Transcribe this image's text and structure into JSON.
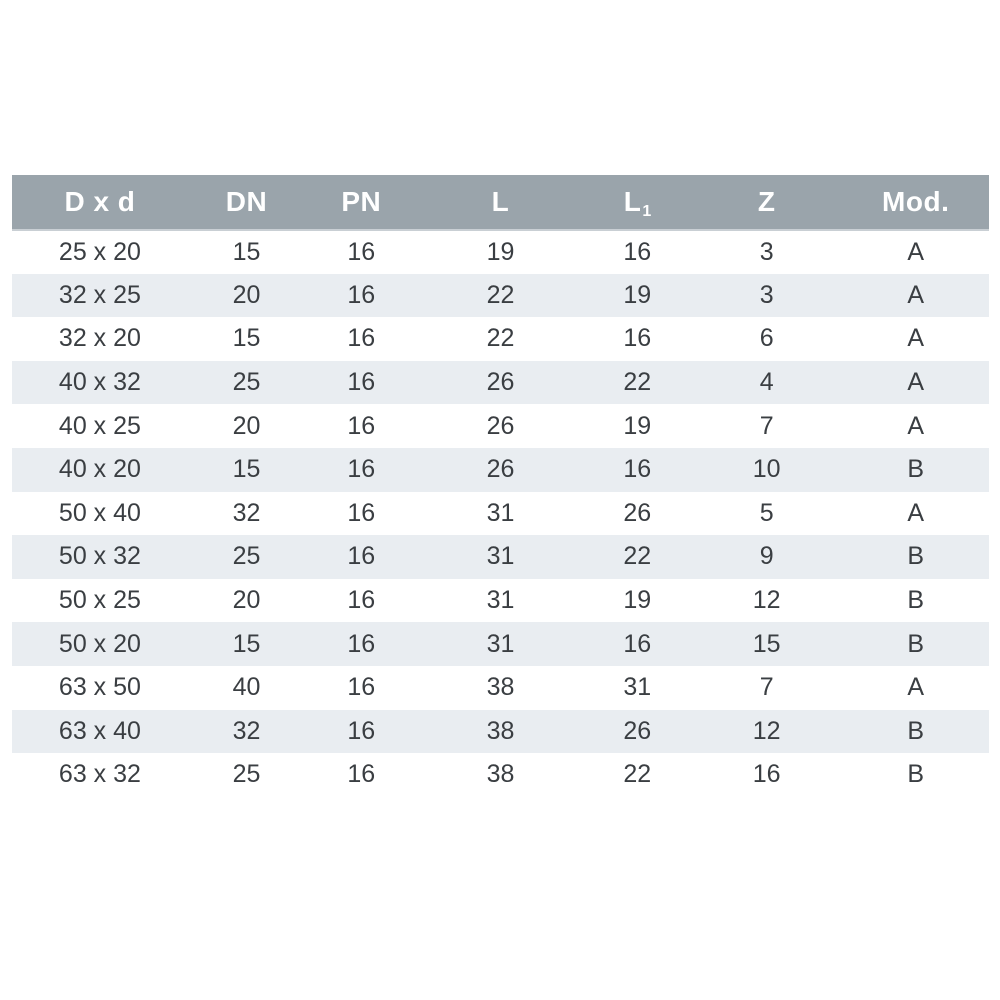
{
  "colors": {
    "header_bg": "#9aa4ab",
    "header_text": "#ffffff",
    "stripe_bg": "#e9edf1",
    "row_bg": "#ffffff",
    "cell_text": "#3a3e42",
    "page_bg": "#ffffff"
  },
  "chart_data": {
    "type": "table",
    "title": "",
    "columns": [
      {
        "label": "D x d",
        "sub": ""
      },
      {
        "label": "DN",
        "sub": ""
      },
      {
        "label": "PN",
        "sub": ""
      },
      {
        "label": "L",
        "sub": ""
      },
      {
        "label": "L",
        "sub": "1"
      },
      {
        "label": "Z",
        "sub": ""
      },
      {
        "label": "Mod.",
        "sub": ""
      }
    ],
    "rows": [
      [
        "25 x 20",
        "15",
        "16",
        "19",
        "16",
        "3",
        "A"
      ],
      [
        "32 x 25",
        "20",
        "16",
        "22",
        "19",
        "3",
        "A"
      ],
      [
        "32 x 20",
        "15",
        "16",
        "22",
        "16",
        "6",
        "A"
      ],
      [
        "40 x 32",
        "25",
        "16",
        "26",
        "22",
        "4",
        "A"
      ],
      [
        "40 x 25",
        "20",
        "16",
        "26",
        "19",
        "7",
        "A"
      ],
      [
        "40 x 20",
        "15",
        "16",
        "26",
        "16",
        "10",
        "B"
      ],
      [
        "50 x 40",
        "32",
        "16",
        "31",
        "26",
        "5",
        "A"
      ],
      [
        "50 x 32",
        "25",
        "16",
        "31",
        "22",
        "9",
        "B"
      ],
      [
        "50 x 25",
        "20",
        "16",
        "31",
        "19",
        "12",
        "B"
      ],
      [
        "50 x 20",
        "15",
        "16",
        "31",
        "16",
        "15",
        "B"
      ],
      [
        "63 x 50",
        "40",
        "16",
        "38",
        "31",
        "7",
        "A"
      ],
      [
        "63 x 40",
        "32",
        "16",
        "38",
        "26",
        "12",
        "B"
      ],
      [
        "63 x 32",
        "25",
        "16",
        "38",
        "22",
        "16",
        "B"
      ]
    ],
    "layout": {
      "striped": true,
      "stripe_pattern": "even-rows-shaded",
      "grid": false,
      "header_style": "solid-gray-band"
    }
  }
}
